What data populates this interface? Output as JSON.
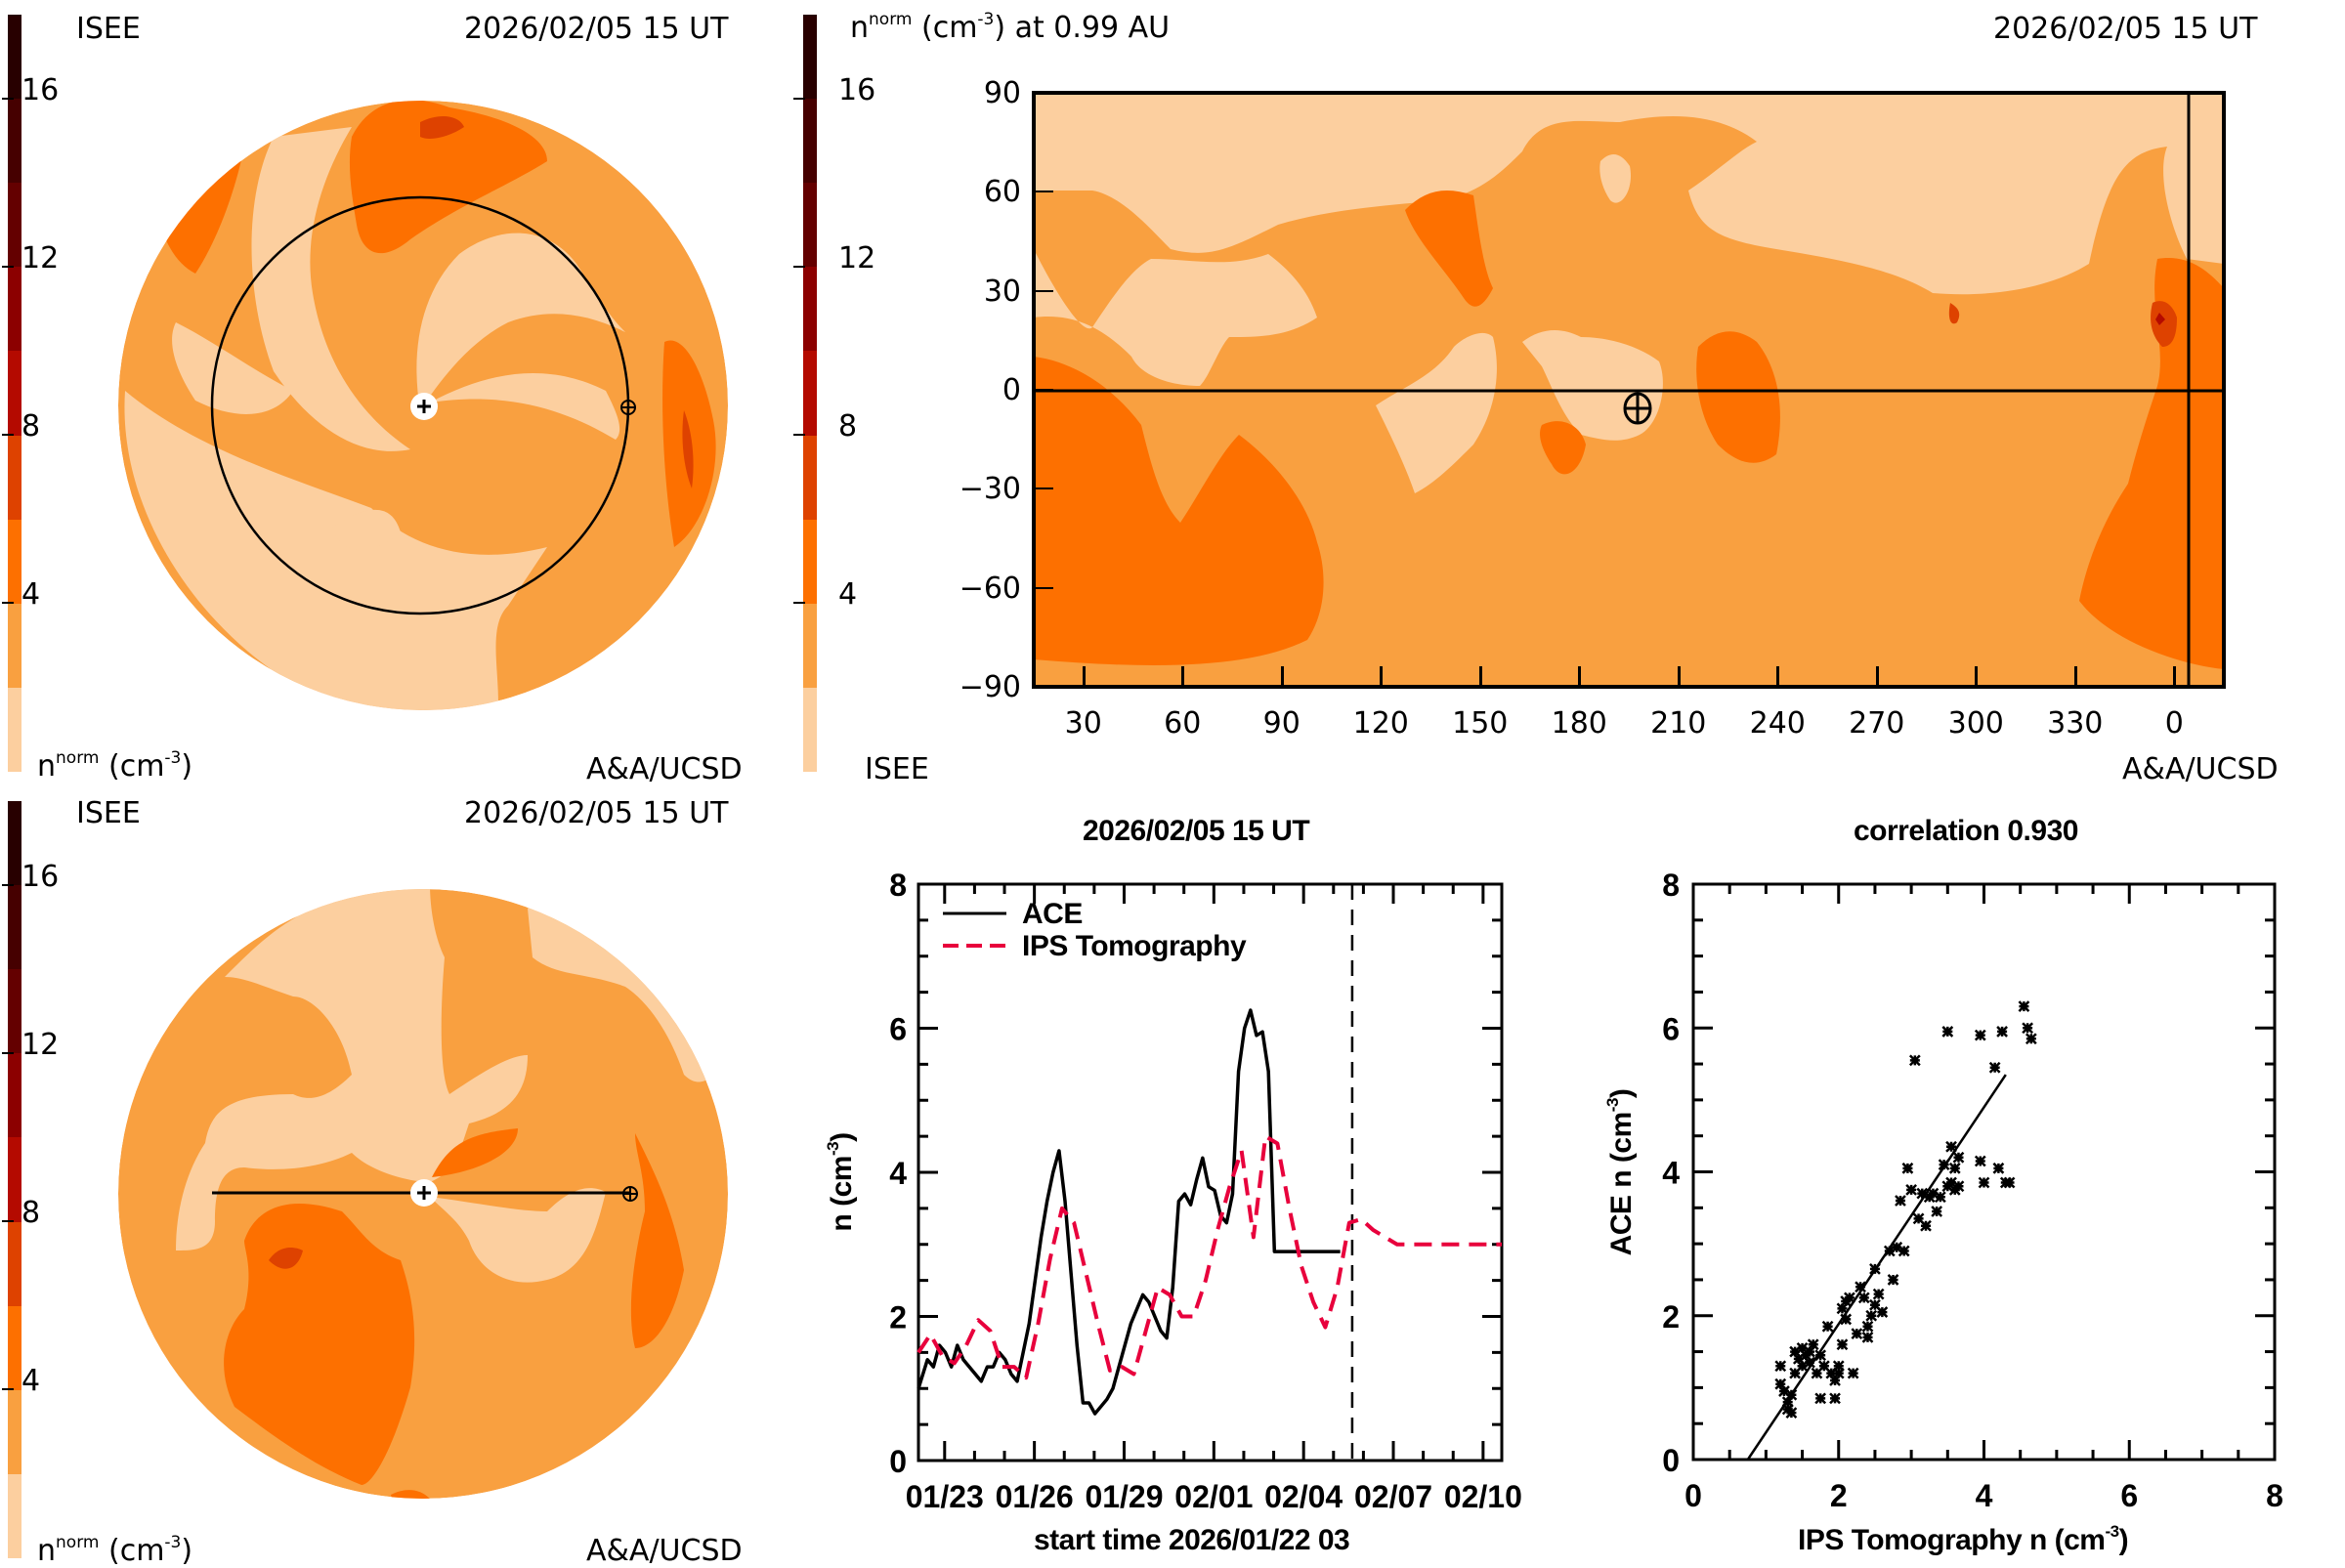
{
  "colorbar": {
    "colors": [
      "#fccf9f",
      "#f9a040",
      "#fd7000",
      "#de4200",
      "#b40a00",
      "#8c0000",
      "#640000",
      "#460000",
      "#280000"
    ],
    "ticks": [
      "4",
      "8",
      "12",
      "16"
    ],
    "range": [
      0,
      18
    ]
  },
  "panels": {
    "top_left": {
      "source": "ISEE",
      "timestamp": "2026/02/05 15 UT",
      "unit_label_main": "n",
      "unit_label_sup": "norm",
      "unit_label_rest": "(cm",
      "unit_exp": "-3",
      "unit_close": ")",
      "credit": "A&A/UCSD",
      "view": "ecliptic plane (polar view)"
    },
    "top_right": {
      "title_main": "n",
      "title_sup": "norm",
      "title_rest": "(cm",
      "title_exp": "-3",
      "title_tail": ") at 0.99 AU",
      "timestamp": "2026/02/05 15 UT",
      "source": "ISEE",
      "credit": "A&A/UCSD",
      "yticks": [
        "90",
        "60",
        "30",
        "0",
        "−30",
        "−60",
        "−90"
      ],
      "xticks": [
        "30",
        "60",
        "90",
        "120",
        "150",
        "180",
        "210",
        "240",
        "270",
        "300",
        "330",
        "0"
      ]
    },
    "bottom_left": {
      "source": "ISEE",
      "timestamp": "2026/02/05 15 UT",
      "unit_label_main": "n",
      "unit_label_sup": "norm",
      "unit_label_rest": "(cm",
      "unit_exp": "-3",
      "unit_close": ")",
      "credit": "A&A/UCSD",
      "view": "meridional cut"
    }
  },
  "chart_data": [
    {
      "type": "line",
      "title": "2026/02/05 15 UT",
      "xlabel": "start time 2026/01/22 03",
      "ylabel": "n (cm⁻³)",
      "ylabel_main": "n (cm",
      "ylabel_exp": "-3",
      "ylabel_close": ")",
      "xtick_labels": [
        "01/23",
        "01/26",
        "01/29",
        "02/01",
        "02/04",
        "02/07",
        "02/10"
      ],
      "xtick_days": [
        0.875,
        3.875,
        6.875,
        9.875,
        12.875,
        15.875,
        18.875
      ],
      "xlim_days": [
        0,
        19.5
      ],
      "ylim": [
        0,
        8
      ],
      "yticks": [
        0,
        2,
        4,
        6,
        8
      ],
      "now_marker_day": 14.5,
      "legend": [
        {
          "name": "ACE",
          "style": "solid",
          "color": "#000000"
        },
        {
          "name": "IPS Tomography",
          "style": "dashed",
          "color": "#e8003c"
        }
      ],
      "legend_position": "top-left",
      "series": [
        {
          "name": "ACE",
          "x_days": [
            0.0,
            0.3,
            0.5,
            0.7,
            0.9,
            1.1,
            1.3,
            1.5,
            1.7,
            1.9,
            2.1,
            2.3,
            2.5,
            2.7,
            2.9,
            3.1,
            3.3,
            3.5,
            3.7,
            3.9,
            4.1,
            4.3,
            4.5,
            4.7,
            4.9,
            5.1,
            5.3,
            5.5,
            5.7,
            5.9,
            6.1,
            6.3,
            6.5,
            6.7,
            6.9,
            7.1,
            7.3,
            7.5,
            7.7,
            7.9,
            8.1,
            8.3,
            8.5,
            8.7,
            8.9,
            9.1,
            9.3,
            9.5,
            9.7,
            9.9,
            10.1,
            10.3,
            10.5,
            10.7,
            10.9,
            11.1,
            11.3,
            11.5,
            11.7,
            11.9,
            12.1,
            12.3,
            12.5,
            12.7,
            12.9,
            13.1,
            13.3,
            13.5,
            13.7,
            13.9,
            14.1,
            14.3,
            14.5
          ],
          "values": [
            1.0,
            1.4,
            1.3,
            1.6,
            1.5,
            1.3,
            1.6,
            1.4,
            1.3,
            1.2,
            1.1,
            1.3,
            1.3,
            1.5,
            1.4,
            1.2,
            1.1,
            1.5,
            1.9,
            2.5,
            3.1,
            3.6,
            4.0,
            4.3,
            3.6,
            2.6,
            1.6,
            0.8,
            0.8,
            0.65,
            0.75,
            0.85,
            1.0,
            1.3,
            1.6,
            1.9,
            2.1,
            2.3,
            2.2,
            2.0,
            1.8,
            1.7,
            2.4,
            3.6,
            3.7,
            3.55,
            3.9,
            4.2,
            3.8,
            3.75,
            3.4,
            3.3,
            3.7,
            5.4,
            6.0,
            6.25,
            5.9,
            5.95,
            5.4,
            2.9,
            2.9,
            2.9,
            2.9,
            2.9,
            2.9,
            2.9,
            2.9,
            2.9,
            2.9,
            2.9,
            2.9,
            2.9,
            2.9
          ]
        },
        {
          "name": "IPS Tomography",
          "x_days": [
            0.0,
            0.4,
            0.8,
            1.2,
            1.6,
            2.0,
            2.4,
            2.8,
            3.2,
            3.6,
            4.0,
            4.4,
            4.8,
            5.2,
            5.6,
            6.0,
            6.4,
            6.8,
            7.2,
            7.6,
            8.0,
            8.4,
            8.8,
            9.2,
            9.6,
            10.0,
            10.4,
            10.8,
            11.2,
            11.6,
            12.0,
            12.4,
            12.8,
            13.2,
            13.6,
            14.0,
            14.4,
            14.8,
            15.2,
            15.6,
            16.0,
            16.4,
            16.8,
            17.2,
            17.6,
            18.0,
            18.4,
            18.8,
            19.2,
            19.5
          ],
          "values": [
            1.5,
            1.75,
            1.45,
            1.35,
            1.6,
            1.95,
            1.8,
            1.3,
            1.3,
            1.15,
            1.9,
            2.8,
            3.5,
            3.3,
            2.6,
            1.9,
            1.25,
            1.3,
            1.2,
            1.8,
            2.4,
            2.3,
            2.0,
            2.0,
            2.5,
            3.2,
            3.8,
            4.3,
            3.1,
            4.5,
            4.4,
            3.5,
            2.7,
            2.2,
            1.85,
            2.4,
            3.3,
            3.35,
            3.2,
            3.1,
            3.0,
            3.0,
            3.0,
            3.0,
            3.0,
            3.0,
            3.0,
            3.0,
            3.0,
            3.0
          ]
        }
      ]
    },
    {
      "type": "scatter",
      "title": "correlation 0.930",
      "xlabel_main": "IPS Tomography n (cm",
      "xlabel_exp": "-3",
      "xlabel_close": ")",
      "ylabel_main": "ACE n (cm",
      "ylabel_exp": "-3",
      "ylabel_close": ")",
      "xlim": [
        0,
        8
      ],
      "ylim": [
        0,
        8
      ],
      "xticks": [
        0,
        2,
        4,
        6,
        8
      ],
      "yticks": [
        0,
        2,
        4,
        6,
        8
      ],
      "correlation": 0.93,
      "fit_line": {
        "x": [
          0.75,
          4.3
        ],
        "y": [
          0.0,
          5.35
        ]
      },
      "points": [
        [
          1.2,
          1.3
        ],
        [
          1.2,
          1.05
        ],
        [
          1.25,
          0.95
        ],
        [
          1.3,
          0.8
        ],
        [
          1.3,
          0.7
        ],
        [
          1.35,
          0.65
        ],
        [
          1.35,
          0.9
        ],
        [
          1.4,
          1.2
        ],
        [
          1.4,
          1.5
        ],
        [
          1.45,
          1.4
        ],
        [
          1.5,
          1.55
        ],
        [
          1.5,
          1.3
        ],
        [
          1.55,
          1.45
        ],
        [
          1.6,
          1.5
        ],
        [
          1.6,
          1.35
        ],
        [
          1.65,
          1.6
        ],
        [
          1.7,
          1.2
        ],
        [
          1.75,
          1.45
        ],
        [
          1.75,
          0.85
        ],
        [
          1.8,
          1.3
        ],
        [
          1.85,
          1.85
        ],
        [
          1.9,
          1.2
        ],
        [
          1.95,
          1.1
        ],
        [
          1.95,
          0.85
        ],
        [
          2.0,
          1.3
        ],
        [
          2.0,
          1.2
        ],
        [
          2.05,
          1.6
        ],
        [
          2.05,
          2.1
        ],
        [
          2.1,
          1.95
        ],
        [
          2.1,
          2.2
        ],
        [
          2.15,
          2.25
        ],
        [
          2.2,
          1.2
        ],
        [
          2.25,
          1.75
        ],
        [
          2.3,
          2.4
        ],
        [
          2.35,
          2.25
        ],
        [
          2.4,
          1.7
        ],
        [
          2.4,
          1.85
        ],
        [
          2.45,
          2.0
        ],
        [
          2.5,
          2.15
        ],
        [
          2.5,
          2.65
        ],
        [
          2.55,
          2.3
        ],
        [
          2.6,
          2.05
        ],
        [
          2.7,
          2.9
        ],
        [
          2.75,
          2.5
        ],
        [
          2.8,
          2.95
        ],
        [
          2.85,
          3.6
        ],
        [
          2.9,
          2.9
        ],
        [
          2.95,
          4.05
        ],
        [
          3.0,
          3.75
        ],
        [
          3.05,
          5.55
        ],
        [
          3.1,
          3.35
        ],
        [
          3.15,
          3.7
        ],
        [
          3.2,
          3.25
        ],
        [
          3.25,
          3.65
        ],
        [
          3.3,
          3.7
        ],
        [
          3.35,
          3.45
        ],
        [
          3.4,
          3.65
        ],
        [
          3.45,
          4.1
        ],
        [
          3.5,
          3.8
        ],
        [
          3.5,
          5.95
        ],
        [
          3.55,
          4.35
        ],
        [
          3.55,
          3.85
        ],
        [
          3.6,
          4.05
        ],
        [
          3.6,
          3.75
        ],
        [
          3.65,
          4.2
        ],
        [
          3.65,
          3.8
        ],
        [
          3.95,
          5.9
        ],
        [
          3.95,
          4.15
        ],
        [
          4.0,
          3.85
        ],
        [
          4.15,
          5.45
        ],
        [
          4.2,
          4.05
        ],
        [
          4.25,
          5.95
        ],
        [
          4.3,
          3.85
        ],
        [
          4.35,
          3.85
        ],
        [
          4.55,
          6.3
        ],
        [
          4.6,
          6.0
        ],
        [
          4.65,
          5.85
        ]
      ]
    }
  ]
}
